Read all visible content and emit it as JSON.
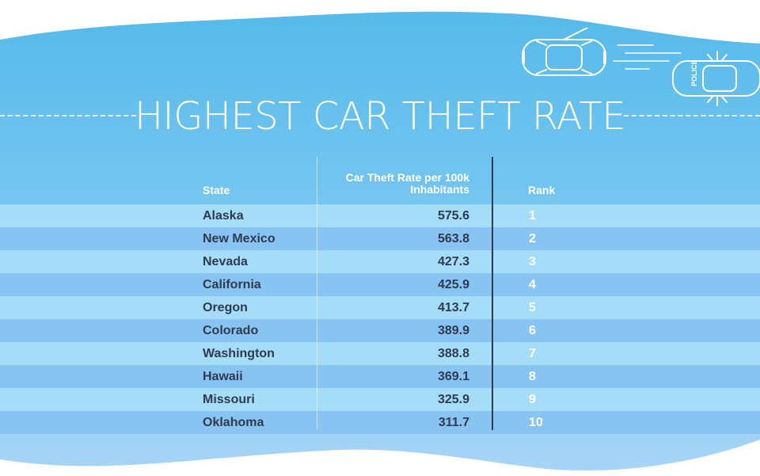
{
  "title": "HIGHEST CAR THEFT RATE",
  "colors": {
    "sky_top": "#56baea",
    "sky_bottom": "#a7d4f7",
    "row_light": "#a5dcf8",
    "row_dark": "#87c4f2",
    "text_dark": "#2f3a50",
    "text_light": "#ffffff"
  },
  "illustration": {
    "car_icon": "car-outline-icon",
    "police_car_icon": "police-car-icon",
    "police_label": "POLICE"
  },
  "chart_data": {
    "type": "table",
    "title": "HIGHEST CAR THEFT RATE",
    "columns": [
      "State",
      "Car Theft Rate per 100k Inhabitants",
      "Rank"
    ],
    "rows": [
      {
        "state": "Alaska",
        "rate": "575.6",
        "rank": "1"
      },
      {
        "state": "New Mexico",
        "rate": "563.8",
        "rank": "2"
      },
      {
        "state": "Nevada",
        "rate": "427.3",
        "rank": "3"
      },
      {
        "state": "California",
        "rate": "425.9",
        "rank": "4"
      },
      {
        "state": "Oregon",
        "rate": "413.7",
        "rank": "5"
      },
      {
        "state": "Colorado",
        "rate": "389.9",
        "rank": "6"
      },
      {
        "state": "Washington",
        "rate": "388.8",
        "rank": "7"
      },
      {
        "state": "Hawaii",
        "rate": "369.1",
        "rank": "8"
      },
      {
        "state": "Missouri",
        "rate": "325.9",
        "rank": "9"
      },
      {
        "state": "Oklahoma",
        "rate": "311.7",
        "rank": "10"
      }
    ]
  }
}
